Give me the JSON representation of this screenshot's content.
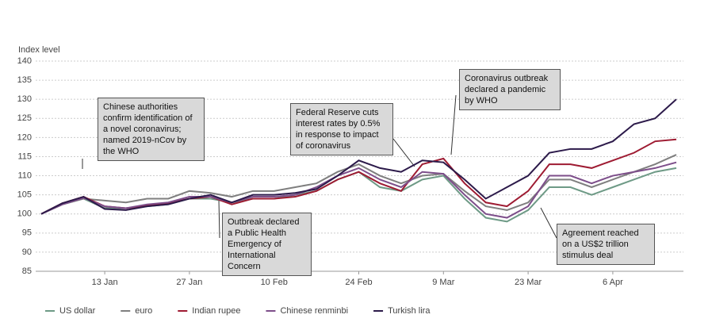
{
  "chart_data": {
    "type": "line",
    "y_axis_label": "Index level",
    "x": [
      null,
      null,
      null,
      "13 Jan",
      null,
      null,
      null,
      "27 Jan",
      null,
      null,
      null,
      "10 Feb",
      null,
      null,
      null,
      "24 Feb",
      null,
      null,
      null,
      "9 Mar",
      null,
      null,
      null,
      "23 Mar",
      null,
      null,
      null,
      "6 Apr",
      null,
      null,
      null
    ],
    "ylim": [
      85,
      140
    ],
    "yticks": [
      85,
      90,
      95,
      100,
      105,
      110,
      115,
      120,
      125,
      130,
      135,
      140
    ],
    "grid": true,
    "series": [
      {
        "name": "US dollar",
        "color": "#6e9a86",
        "values": [
          100,
          102.5,
          104,
          101.5,
          101.5,
          102,
          102.5,
          104,
          104,
          103,
          104,
          104,
          105,
          106,
          109,
          111,
          107,
          106,
          109,
          110,
          104,
          99,
          98,
          101,
          107,
          107,
          105,
          107,
          109,
          111,
          112
        ]
      },
      {
        "name": "euro",
        "color": "#7f7f7f",
        "values": [
          100,
          102.5,
          104,
          103.5,
          103,
          104,
          104,
          106,
          105.5,
          104.5,
          106,
          106,
          107,
          108,
          111,
          113,
          110,
          108,
          110,
          110.5,
          106,
          102,
          101,
          103,
          109,
          109,
          107,
          109,
          111,
          113,
          115.5
        ]
      },
      {
        "name": "Indian rupee",
        "color": "#9e1b32",
        "values": [
          100,
          102.8,
          104.5,
          102,
          101.5,
          102.2,
          102.8,
          104,
          104.5,
          102.5,
          104,
          104,
          104.5,
          106,
          109,
          111,
          108,
          106,
          113,
          114.5,
          108,
          103,
          102,
          106,
          113,
          113,
          112,
          114,
          116,
          119,
          119.5
        ]
      },
      {
        "name": "Chinese renminbi",
        "color": "#7d4e8a",
        "values": [
          100,
          102.5,
          104.2,
          102,
          101.5,
          102.5,
          103,
          104.5,
          104.5,
          103,
          104.5,
          104.5,
          105,
          107,
          110,
          112,
          109,
          107,
          111,
          110.5,
          105,
          100,
          99,
          102,
          110,
          110,
          108,
          110,
          111,
          112,
          113.5
        ]
      },
      {
        "name": "Turkish lira",
        "color": "#2c1a4a",
        "values": [
          100,
          102.8,
          104.5,
          101.3,
          101,
          102,
          102.5,
          104,
          105,
          103,
          105,
          105,
          105.5,
          106.5,
          110,
          114,
          112,
          111,
          114,
          113.5,
          109,
          104,
          107,
          110,
          116,
          117,
          117,
          119,
          123.5,
          125,
          130
        ]
      }
    ],
    "annotations": [
      "Chinese authorities confirm identification of a novel coronavirus; named 2019-nCov by the WHO",
      "Outbreak declared a Public Health Emergency of International Concern",
      "Federal Reserve cuts interest rates by 0.5% in response to impact of coronavirus",
      "Coronavirus outbreak declared a pandemic by WHO",
      "Agreement reached on a US$2 trillion stimulus deal"
    ]
  }
}
